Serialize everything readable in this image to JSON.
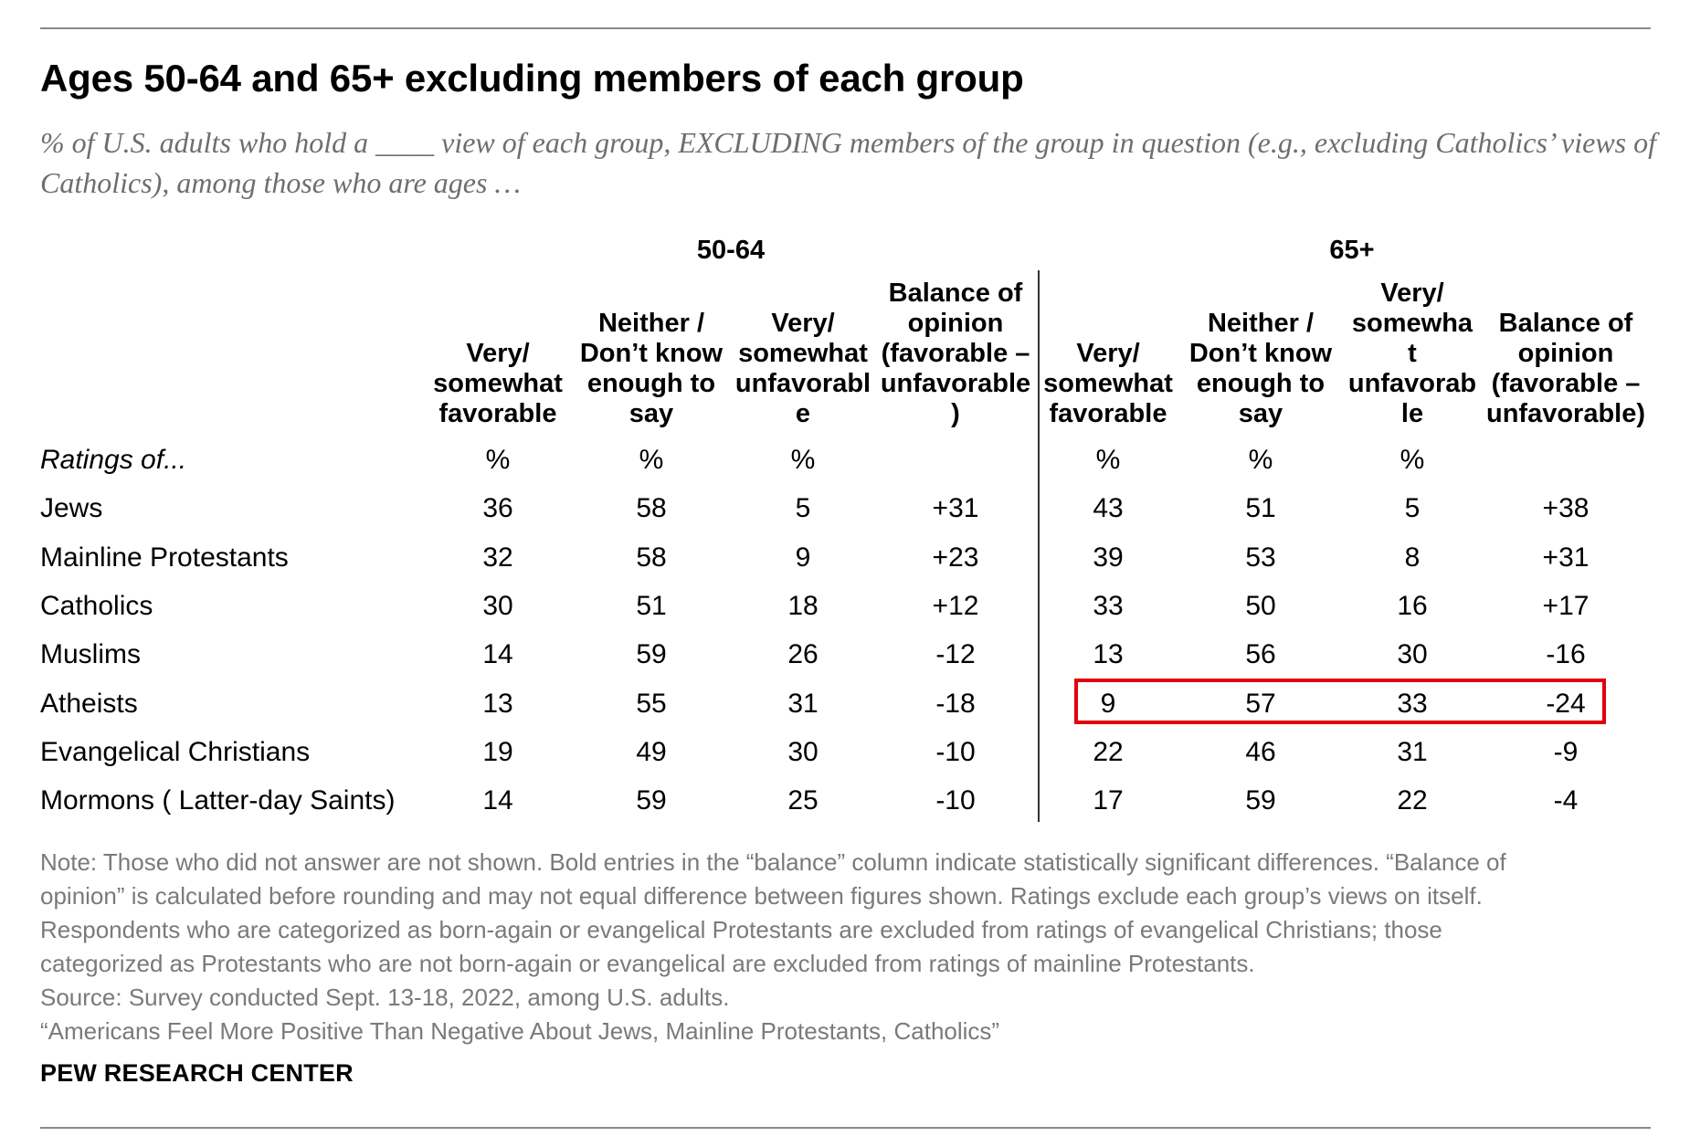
{
  "chart_data": {
    "type": "table",
    "title": "Ages 50-64 and 65+ excluding members of each group",
    "subtitle": " % of U.S. adults who hold a ____ view of each group, EXCLUDING members of the group in question (e.g., excluding Catholics’ views of Catholics), among those who are ages …",
    "groups": [
      "50-64",
      "65+"
    ],
    "columns": [
      "Very/ somewhat favorable",
      "Neither / Don’t know enough to say",
      "Very/ somewhat unfavorable",
      "Balance of opinion (favorable – unfavorable)",
      "Very/ somewhat favorable",
      "Neither / Don’t know enough to say",
      "Very/ somewhat unfavorable",
      "Balance of opinion (favorable – unfavorable)"
    ],
    "header_row": {
      "label": "Ratings of...",
      "units": [
        "%",
        "%",
        "%",
        "",
        "%",
        "%",
        "%",
        ""
      ]
    },
    "rows": [
      {
        "label": "Jews",
        "values": [
          "36",
          "58",
          "5",
          "+31",
          "43",
          "51",
          "5",
          "+38"
        ]
      },
      {
        "label": "Mainline Protestants",
        "values": [
          "32",
          "58",
          "9",
          "+23",
          "39",
          "53",
          "8",
          "+31"
        ]
      },
      {
        "label": "Catholics",
        "values": [
          "30",
          "51",
          "18",
          "+12",
          "33",
          "50",
          "16",
          "+17"
        ]
      },
      {
        "label": "Muslims",
        "values": [
          "14",
          "59",
          "26",
          "-12",
          "13",
          "56",
          "30",
          "-16"
        ]
      },
      {
        "label": "Atheists",
        "values": [
          "13",
          "55",
          "31",
          "-18",
          "9",
          "57",
          "33",
          "-24"
        ]
      },
      {
        "label": "Evangelical Christians",
        "values": [
          "19",
          "49",
          "30",
          "-10",
          "22",
          "46",
          "31",
          "-9"
        ]
      },
      {
        "label": "Mormons ( Latter-day Saints)",
        "values": [
          "14",
          "59",
          "25",
          "-10",
          "17",
          "59",
          "22",
          "-4"
        ]
      }
    ],
    "highlight": {
      "row": "Atheists",
      "group": "65+",
      "color": "#e3000f"
    }
  },
  "notes": [
    "Note: Those who did not answer are not shown. Bold entries in the “balance” column indicate statistically significant differences. “Balance of",
    "opinion” is calculated before rounding and may not equal difference between figures shown. Ratings exclude each group’s views on itself.",
    "Respondents who are categorized as born-again or evangelical Protestants are excluded from ratings of evangelical Christians; those",
    "categorized as Protestants who are not born-again or evangelical are excluded from ratings of mainline Protestants.",
    "Source: Survey conducted Sept. 13-18, 2022, among U.S. adults.",
    "“Americans Feel More Positive Than Negative About Jews, Mainline Protestants, Catholics”"
  ],
  "brand": "PEW RESEARCH CENTER"
}
